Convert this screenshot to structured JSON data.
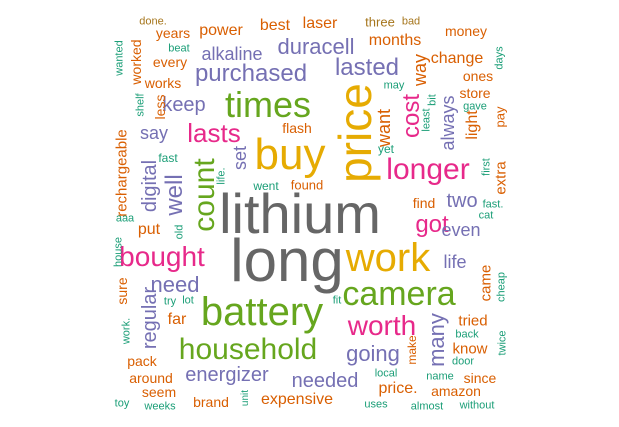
{
  "palette": {
    "gray": "#666666",
    "green": "#66a61e",
    "gold": "#e6ab02",
    "magenta": "#e7298a",
    "purple": "#7570b3",
    "orange": "#d95f02",
    "teal": "#1b9e77",
    "brown": "#a6761d"
  },
  "words": [
    {
      "text": "lithium",
      "color": "#666666"
    },
    {
      "text": "long",
      "color": "#666666"
    },
    {
      "text": "price",
      "color": "#e6ab02"
    },
    {
      "text": "buy",
      "color": "#e6ab02"
    },
    {
      "text": "times",
      "color": "#66a61e"
    },
    {
      "text": "battery",
      "color": "#66a61e"
    },
    {
      "text": "work",
      "color": "#e6ab02"
    },
    {
      "text": "camera",
      "color": "#66a61e"
    },
    {
      "text": "household",
      "color": "#66a61e"
    },
    {
      "text": "count",
      "color": "#66a61e"
    },
    {
      "text": "longer",
      "color": "#e7298a"
    },
    {
      "text": "bought",
      "color": "#e7298a"
    },
    {
      "text": "worth",
      "color": "#e7298a"
    },
    {
      "text": "lasts",
      "color": "#e7298a"
    },
    {
      "text": "cost",
      "color": "#e7298a"
    },
    {
      "text": "got",
      "color": "#e7298a"
    },
    {
      "text": "purchased",
      "color": "#7570b3"
    },
    {
      "text": "duracell",
      "color": "#7570b3"
    },
    {
      "text": "lasted",
      "color": "#7570b3"
    },
    {
      "text": "going",
      "color": "#7570b3"
    },
    {
      "text": "need",
      "color": "#7570b3"
    },
    {
      "text": "well",
      "color": "#7570b3"
    },
    {
      "text": "energizer",
      "color": "#7570b3"
    },
    {
      "text": "needed",
      "color": "#7570b3"
    },
    {
      "text": "alkaline",
      "color": "#7570b3"
    },
    {
      "text": "two",
      "color": "#7570b3"
    },
    {
      "text": "many",
      "color": "#7570b3"
    },
    {
      "text": "keep",
      "color": "#7570b3"
    },
    {
      "text": "regular",
      "color": "#7570b3"
    },
    {
      "text": "digital",
      "color": "#7570b3"
    },
    {
      "text": "even",
      "color": "#7570b3"
    },
    {
      "text": "life",
      "color": "#7570b3"
    },
    {
      "text": "say",
      "color": "#7570b3"
    },
    {
      "text": "set",
      "color": "#7570b3"
    },
    {
      "text": "always",
      "color": "#7570b3"
    },
    {
      "text": "want",
      "color": "#d95f02"
    },
    {
      "text": "power",
      "color": "#d95f02"
    },
    {
      "text": "best",
      "color": "#d95f02"
    },
    {
      "text": "laser",
      "color": "#d95f02"
    },
    {
      "text": "months",
      "color": "#d95f02"
    },
    {
      "text": "years",
      "color": "#d95f02"
    },
    {
      "text": "every",
      "color": "#d95f02"
    },
    {
      "text": "works",
      "color": "#d95f02"
    },
    {
      "text": "worked",
      "color": "#d95f02"
    },
    {
      "text": "less",
      "color": "#d95f02"
    },
    {
      "text": "way",
      "color": "#d95f02"
    },
    {
      "text": "change",
      "color": "#d95f02"
    },
    {
      "text": "ones",
      "color": "#d95f02"
    },
    {
      "text": "store",
      "color": "#d95f02"
    },
    {
      "text": "money",
      "color": "#d95f02"
    },
    {
      "text": "light",
      "color": "#d95f02"
    },
    {
      "text": "pay",
      "color": "#d95f02"
    },
    {
      "text": "rechargeable",
      "color": "#d95f02"
    },
    {
      "text": "flash",
      "color": "#d95f02"
    },
    {
      "text": "found",
      "color": "#d95f02"
    },
    {
      "text": "put",
      "color": "#d95f02"
    },
    {
      "text": "find",
      "color": "#d95f02"
    },
    {
      "text": "extra",
      "color": "#d95f02"
    },
    {
      "text": "came",
      "color": "#d95f02"
    },
    {
      "text": "tried",
      "color": "#d95f02"
    },
    {
      "text": "know",
      "color": "#d95f02"
    },
    {
      "text": "far",
      "color": "#d95f02"
    },
    {
      "text": "sure",
      "color": "#d95f02"
    },
    {
      "text": "pack",
      "color": "#d95f02"
    },
    {
      "text": "around",
      "color": "#d95f02"
    },
    {
      "text": "seem",
      "color": "#d95f02"
    },
    {
      "text": "brand",
      "color": "#d95f02"
    },
    {
      "text": "expensive",
      "color": "#d95f02"
    },
    {
      "text": "price.",
      "color": "#d95f02"
    },
    {
      "text": "amazon",
      "color": "#d95f02"
    },
    {
      "text": "since",
      "color": "#d95f02"
    },
    {
      "text": "make",
      "color": "#d95f02"
    },
    {
      "text": "three",
      "color": "#a6761d"
    },
    {
      "text": "bad",
      "color": "#a6761d"
    },
    {
      "text": "done.",
      "color": "#a6761d"
    },
    {
      "text": "wanted",
      "color": "#1b9e77"
    },
    {
      "text": "beat",
      "color": "#1b9e77"
    },
    {
      "text": "shelf",
      "color": "#1b9e77"
    },
    {
      "text": "may",
      "color": "#1b9e77"
    },
    {
      "text": "least",
      "color": "#1b9e77"
    },
    {
      "text": "bit",
      "color": "#1b9e77"
    },
    {
      "text": "gave",
      "color": "#1b9e77"
    },
    {
      "text": "days",
      "color": "#1b9e77"
    },
    {
      "text": "fast",
      "color": "#1b9e77"
    },
    {
      "text": "life.",
      "color": "#1b9e77"
    },
    {
      "text": "went",
      "color": "#1b9e77"
    },
    {
      "text": "yet",
      "color": "#1b9e77"
    },
    {
      "text": "first",
      "color": "#1b9e77"
    },
    {
      "text": "fast.",
      "color": "#1b9e77"
    },
    {
      "text": "cat",
      "color": "#1b9e77"
    },
    {
      "text": "aaa",
      "color": "#1b9e77"
    },
    {
      "text": "old",
      "color": "#1b9e77"
    },
    {
      "text": "house",
      "color": "#1b9e77"
    },
    {
      "text": "try",
      "color": "#1b9e77"
    },
    {
      "text": "lot",
      "color": "#1b9e77"
    },
    {
      "text": "fit",
      "color": "#1b9e77"
    },
    {
      "text": "cheap",
      "color": "#1b9e77"
    },
    {
      "text": "back",
      "color": "#1b9e77"
    },
    {
      "text": "twice",
      "color": "#1b9e77"
    },
    {
      "text": "door",
      "color": "#1b9e77"
    },
    {
      "text": "work.",
      "color": "#1b9e77"
    },
    {
      "text": "local",
      "color": "#1b9e77"
    },
    {
      "text": "name",
      "color": "#1b9e77"
    },
    {
      "text": "uses",
      "color": "#1b9e77"
    },
    {
      "text": "almost",
      "color": "#1b9e77"
    },
    {
      "text": "without",
      "color": "#1b9e77"
    },
    {
      "text": "unit",
      "color": "#1b9e77"
    },
    {
      "text": "weeks",
      "color": "#1b9e77"
    },
    {
      "text": "toy",
      "color": "#1b9e77"
    }
  ]
}
